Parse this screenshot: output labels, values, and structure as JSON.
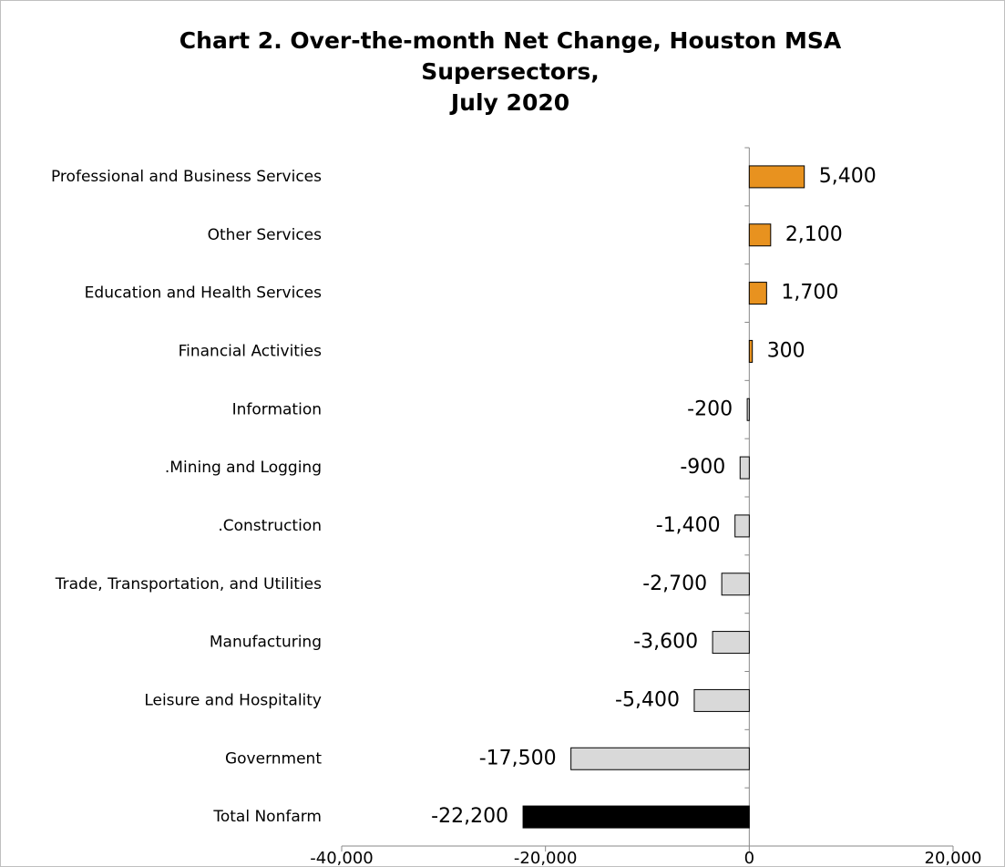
{
  "chart_data": {
    "type": "hbar",
    "title": [
      "Chart 2. Over-the-month Net Change, Houston MSA",
      "Supersectors,",
      "July 2020"
    ],
    "categories": [
      "Professional and Business Services",
      "Other Services",
      "Education and Health Services",
      "Financial Activities",
      "Information",
      ".Mining and Logging",
      ".Construction",
      "Trade, Transportation, and Utilities",
      "Manufacturing",
      "Leisure and Hospitality",
      "Government",
      "Total Nonfarm"
    ],
    "values": [
      5400,
      2100,
      1700,
      300,
      -200,
      -900,
      -1400,
      -2700,
      -3600,
      -5400,
      -17500,
      -22200
    ],
    "value_labels": [
      "5,400",
      "2,100",
      "1,700",
      "300",
      "-200",
      "-900",
      "-1,400",
      "-2,700",
      "-3,600",
      "-5,400",
      "-17,500",
      "-22,200"
    ],
    "colors": [
      "#e8921f",
      "#e8921f",
      "#e8921f",
      "#e8921f",
      "#d9d9d9",
      "#d9d9d9",
      "#d9d9d9",
      "#d9d9d9",
      "#d9d9d9",
      "#d9d9d9",
      "#d9d9d9",
      "#000000"
    ],
    "xlim": [
      -40000,
      20000
    ],
    "xticks": [
      {
        "value": -40000,
        "label": "-40,000"
      },
      {
        "value": -20000,
        "label": "-20,000"
      },
      0,
      {
        "value": 20000,
        "label": "20,000"
      }
    ]
  }
}
